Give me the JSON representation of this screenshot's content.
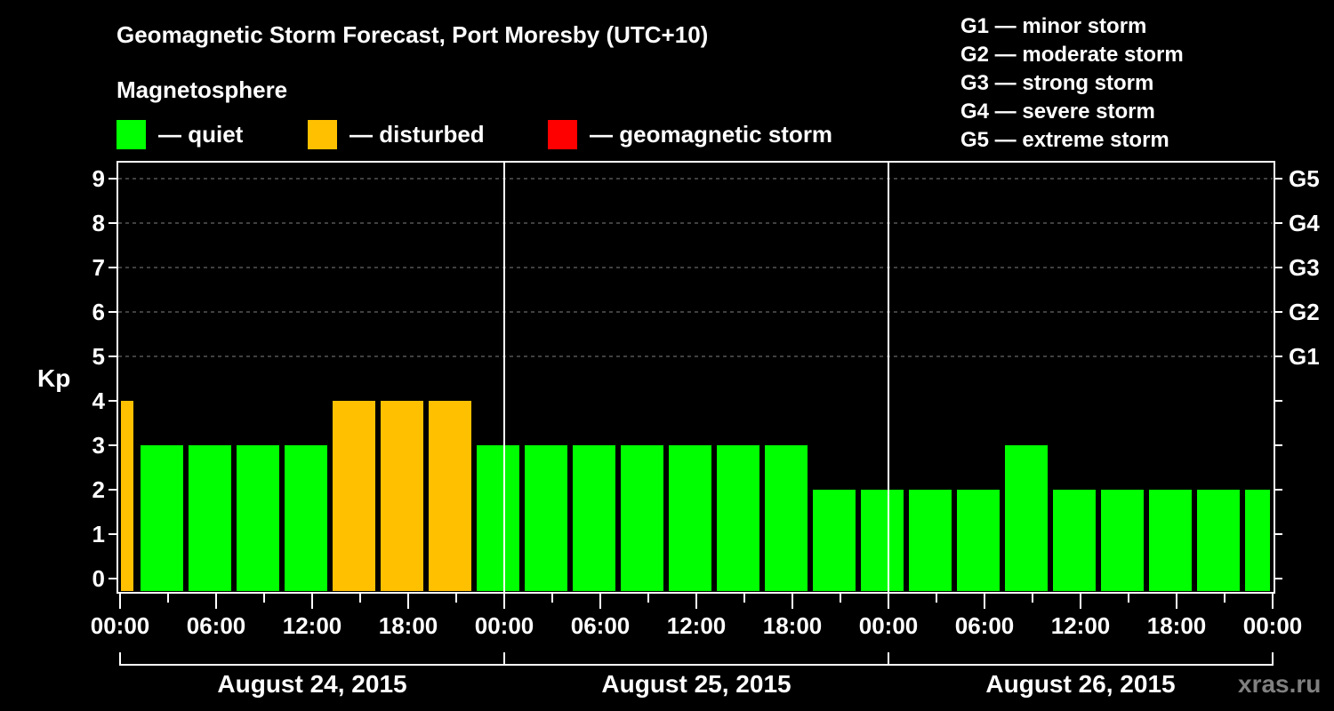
{
  "header": {
    "title": "Geomagnetic Storm Forecast, Port Moresby (UTC+10)",
    "subtitle": "Magnetosphere"
  },
  "legend": [
    {
      "label": "— quiet",
      "color": "#00ff00"
    },
    {
      "label": "— disturbed",
      "color": "#ffc000"
    },
    {
      "label": "— geomagnetic storm",
      "color": "#ff0000"
    }
  ],
  "g_legend": [
    "G1 — minor storm",
    "G2 — moderate storm",
    "G3 — strong storm",
    "G4 — severe storm",
    "G5 — extreme storm"
  ],
  "watermark": "xras.ru",
  "chart_data": {
    "type": "bar",
    "title": "Geomagnetic Storm Forecast, Port Moresby (UTC+10)",
    "ylabel": "Kp",
    "xlabel": "",
    "ylim": [
      0,
      9
    ],
    "yticks": [
      0,
      1,
      2,
      3,
      4,
      5,
      6,
      7,
      8,
      9
    ],
    "y2ticks": [
      {
        "kp": 5,
        "label": "G1"
      },
      {
        "kp": 6,
        "label": "G2"
      },
      {
        "kp": 7,
        "label": "G3"
      },
      {
        "kp": 8,
        "label": "G4"
      },
      {
        "kp": 9,
        "label": "G5"
      }
    ],
    "xticks": [
      "00:00",
      "06:00",
      "12:00",
      "18:00",
      "00:00",
      "06:00",
      "12:00",
      "18:00",
      "00:00",
      "06:00",
      "12:00",
      "18:00",
      "00:00"
    ],
    "days": [
      "August 24, 2015",
      "August 25, 2015",
      "August 26, 2015"
    ],
    "grid": "dashed horizontal at Kp 5-9",
    "bar_interval_hours": 3,
    "first_bar_start_local": "August 23, 2015 22:00",
    "bars": [
      {
        "start": "Aug 23 22:00",
        "kp": 4,
        "status": "disturbed"
      },
      {
        "start": "Aug 24 01:00",
        "kp": 3,
        "status": "quiet"
      },
      {
        "start": "Aug 24 04:00",
        "kp": 3,
        "status": "quiet"
      },
      {
        "start": "Aug 24 07:00",
        "kp": 3,
        "status": "quiet"
      },
      {
        "start": "Aug 24 10:00",
        "kp": 3,
        "status": "quiet"
      },
      {
        "start": "Aug 24 13:00",
        "kp": 4,
        "status": "disturbed"
      },
      {
        "start": "Aug 24 16:00",
        "kp": 4,
        "status": "disturbed"
      },
      {
        "start": "Aug 24 19:00",
        "kp": 4,
        "status": "disturbed"
      },
      {
        "start": "Aug 24 22:00",
        "kp": 3,
        "status": "quiet"
      },
      {
        "start": "Aug 25 01:00",
        "kp": 3,
        "status": "quiet"
      },
      {
        "start": "Aug 25 04:00",
        "kp": 3,
        "status": "quiet"
      },
      {
        "start": "Aug 25 07:00",
        "kp": 3,
        "status": "quiet"
      },
      {
        "start": "Aug 25 10:00",
        "kp": 3,
        "status": "quiet"
      },
      {
        "start": "Aug 25 13:00",
        "kp": 3,
        "status": "quiet"
      },
      {
        "start": "Aug 25 16:00",
        "kp": 3,
        "status": "quiet"
      },
      {
        "start": "Aug 25 19:00",
        "kp": 2,
        "status": "quiet"
      },
      {
        "start": "Aug 25 22:00",
        "kp": 2,
        "status": "quiet"
      },
      {
        "start": "Aug 26 01:00",
        "kp": 2,
        "status": "quiet"
      },
      {
        "start": "Aug 26 04:00",
        "kp": 2,
        "status": "quiet"
      },
      {
        "start": "Aug 26 07:00",
        "kp": 3,
        "status": "quiet"
      },
      {
        "start": "Aug 26 10:00",
        "kp": 2,
        "status": "quiet"
      },
      {
        "start": "Aug 26 13:00",
        "kp": 2,
        "status": "quiet"
      },
      {
        "start": "Aug 26 16:00",
        "kp": 2,
        "status": "quiet"
      },
      {
        "start": "Aug 26 19:00",
        "kp": 2,
        "status": "quiet"
      },
      {
        "start": "Aug 26 22:00",
        "kp": 2,
        "status": "quiet"
      }
    ],
    "colors": {
      "quiet": "#00ff00",
      "disturbed": "#ffc000",
      "storm": "#ff0000"
    }
  }
}
